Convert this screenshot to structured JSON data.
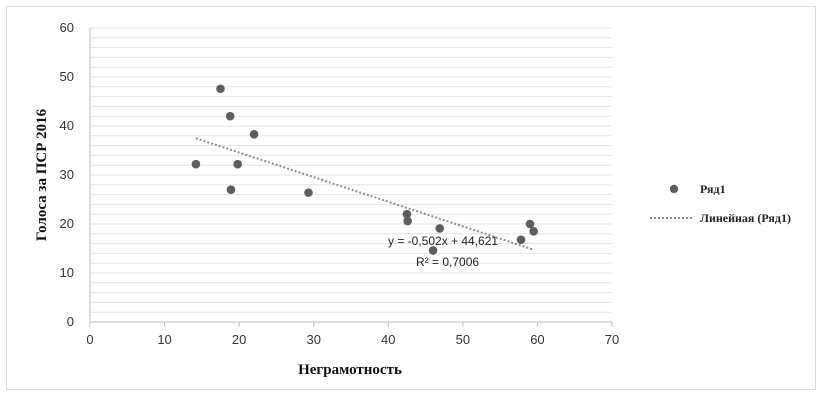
{
  "chart_data": {
    "type": "scatter",
    "title": "",
    "xlabel": "Неграмотность",
    "ylabel": "Голоса за ПСР 2016",
    "xlim": [
      0,
      70
    ],
    "ylim": [
      0,
      60
    ],
    "x_ticks": [
      "0",
      "10",
      "20",
      "30",
      "40",
      "50",
      "60",
      "70"
    ],
    "y_ticks": [
      "0",
      "10",
      "20",
      "30",
      "40",
      "50",
      "60"
    ],
    "grid": "horizontal",
    "legend_position": "right",
    "colors": {
      "points": "#5e5e5e",
      "trend": "#8c8c8c",
      "grid": "#e3e3e3",
      "axis": "#bfbfbf"
    },
    "series": [
      {
        "name": "Ряд1",
        "points": [
          [
            14.2,
            32.2
          ],
          [
            17.5,
            47.6
          ],
          [
            18.8,
            42.0
          ],
          [
            18.9,
            27.0
          ],
          [
            19.8,
            32.2
          ],
          [
            22.0,
            38.3
          ],
          [
            29.3,
            26.4
          ],
          [
            42.5,
            22.0
          ],
          [
            42.6,
            20.6
          ],
          [
            46.9,
            19.1
          ],
          [
            46.0,
            14.6
          ],
          [
            57.8,
            16.8
          ],
          [
            59.0,
            20.0
          ],
          [
            59.5,
            18.5
          ]
        ]
      }
    ],
    "trendline": {
      "name": "Линейная (Ряд1)",
      "slope": -0.502,
      "intercept": 44.621,
      "x_range": [
        14.2,
        59.5
      ],
      "equation": "y = -0,502x + 44,621",
      "r2": "R² = 0,7006"
    }
  }
}
